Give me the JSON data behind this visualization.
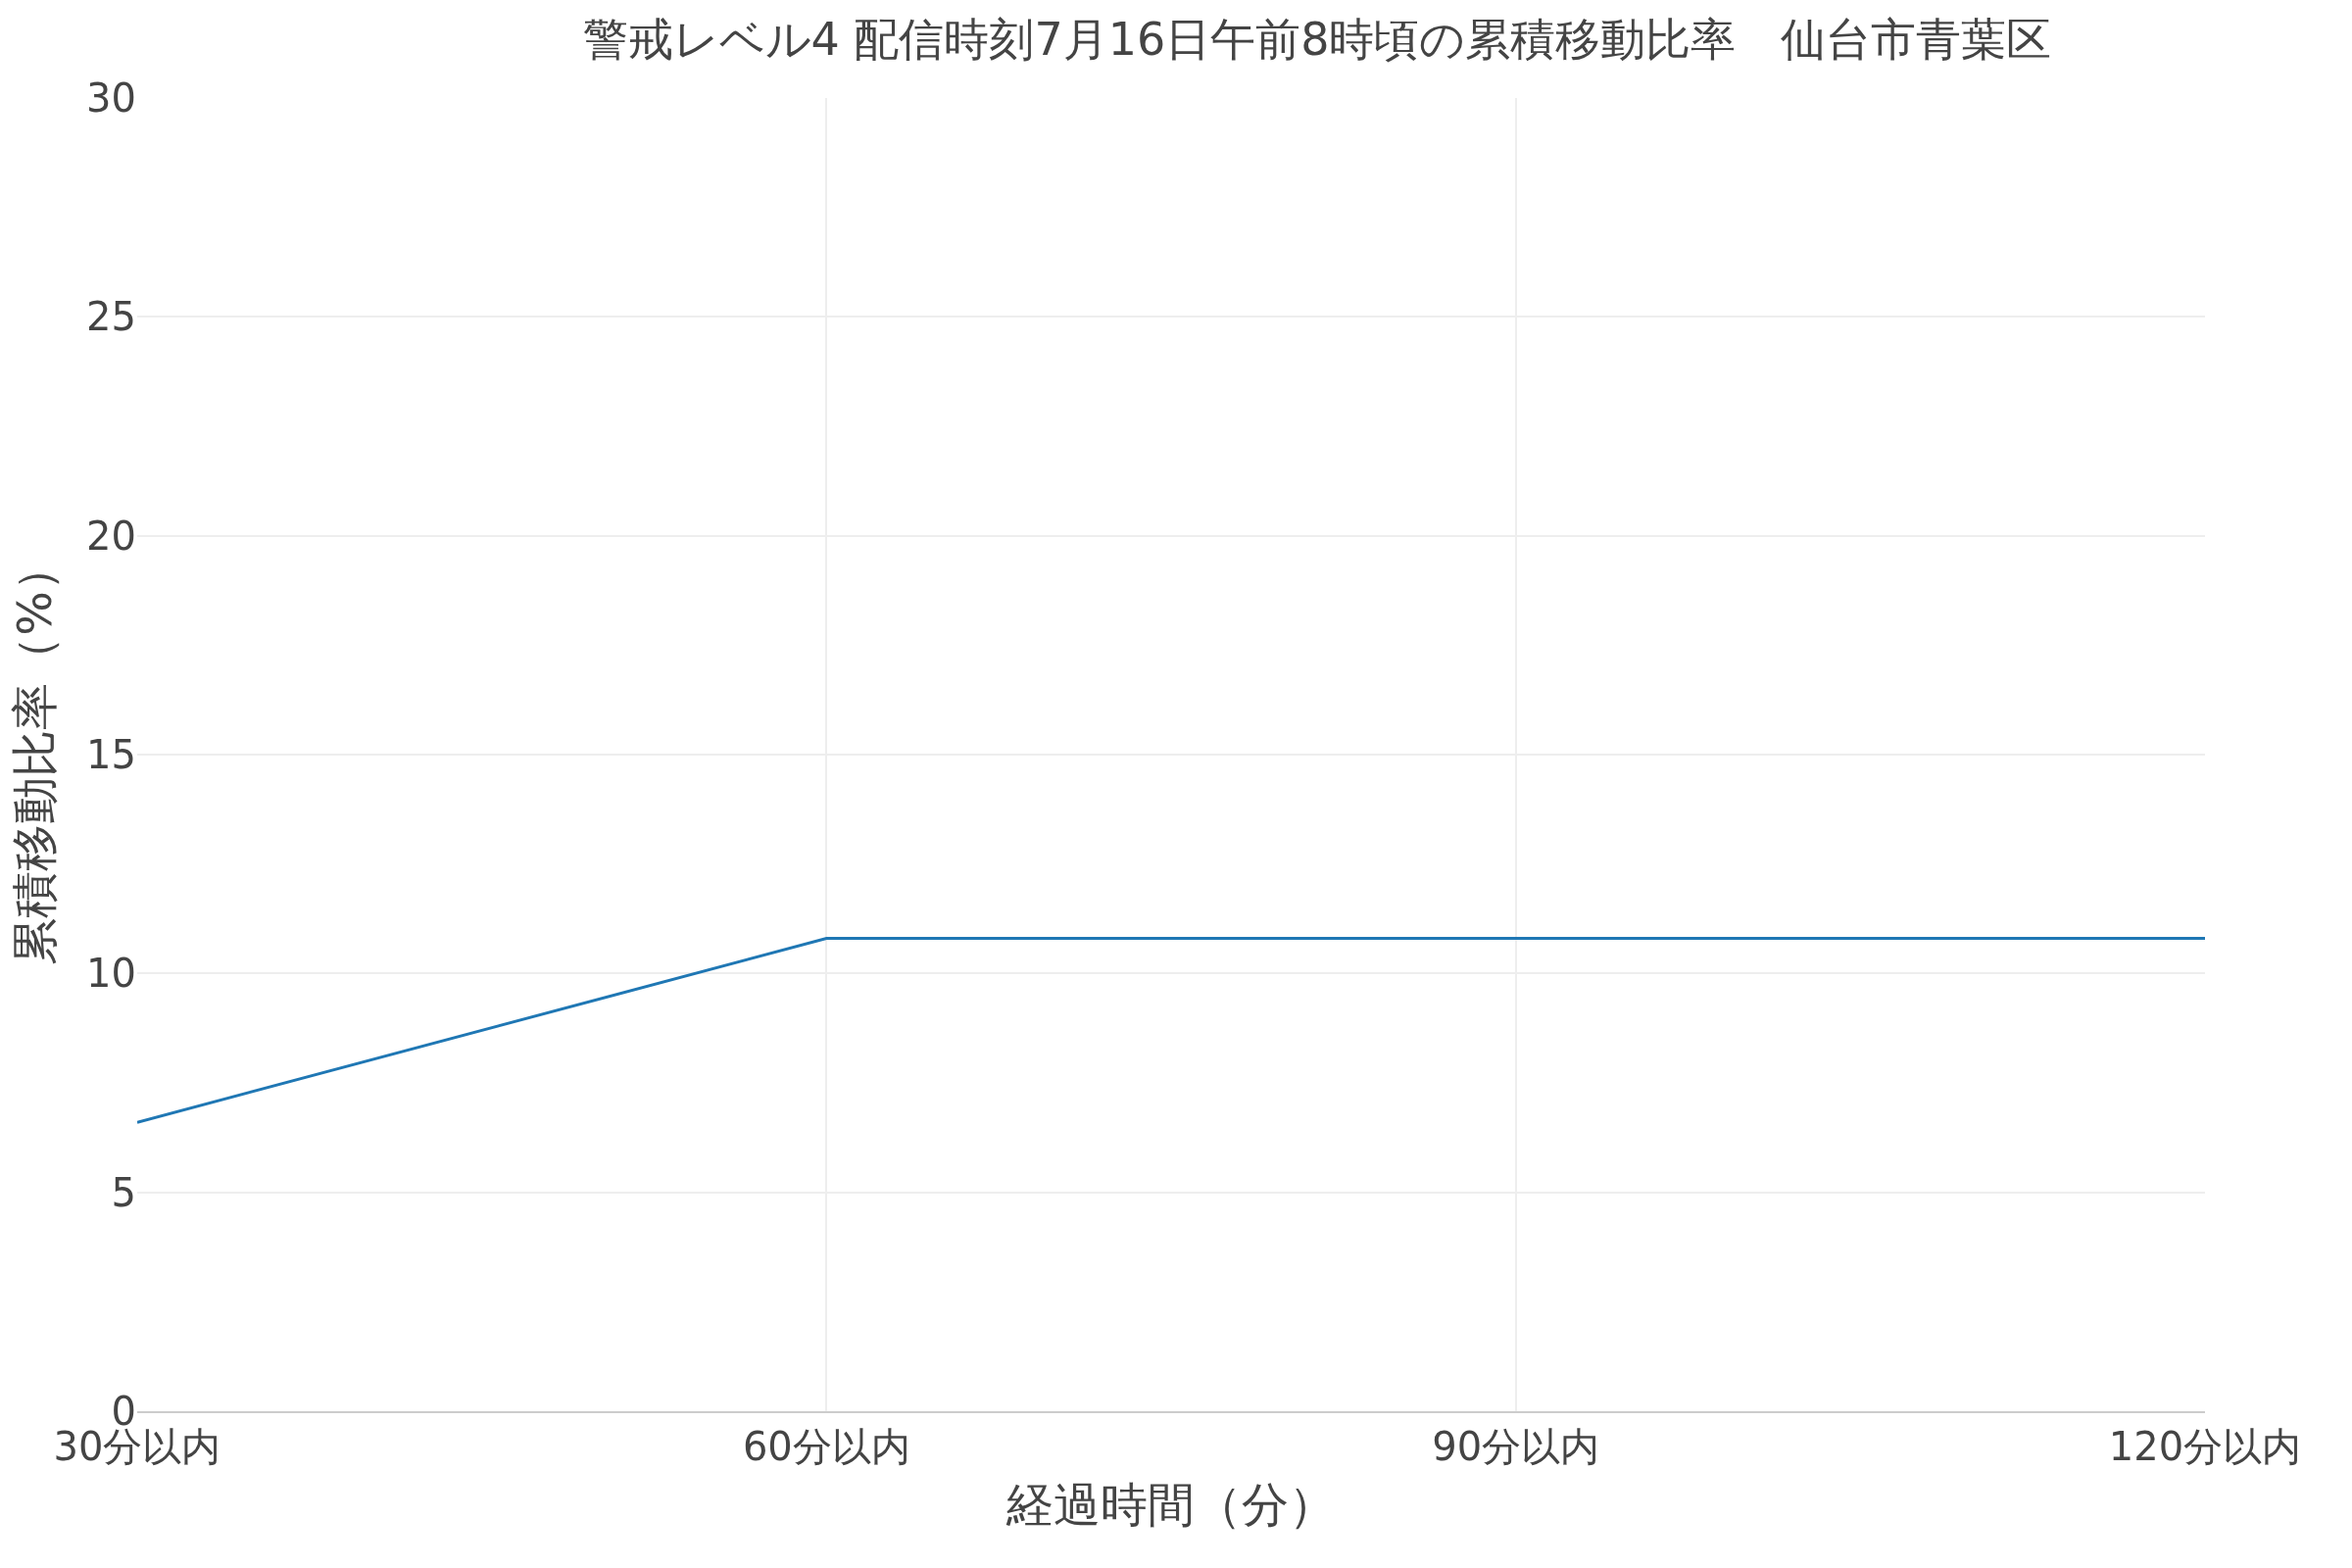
{
  "chart_data": {
    "type": "line",
    "title": "警戒レベル4 配信時刻7月16日午前8時頃の累積移動比率　仙台市青葉区",
    "xlabel": "経過時間（分）",
    "ylabel": "累積移動比率（%）",
    "categories": [
      "30分以内",
      "60分以内",
      "90分以内",
      "120分以内"
    ],
    "series": [
      {
        "color": "#1f77b4",
        "values": [
          6.6,
          10.8,
          10.8,
          10.8
        ]
      }
    ],
    "ylim": [
      0,
      30
    ],
    "yticks": [
      0,
      5,
      10,
      15,
      20,
      25,
      30
    ],
    "grid": true,
    "marker": "none",
    "line_style": "solid"
  }
}
